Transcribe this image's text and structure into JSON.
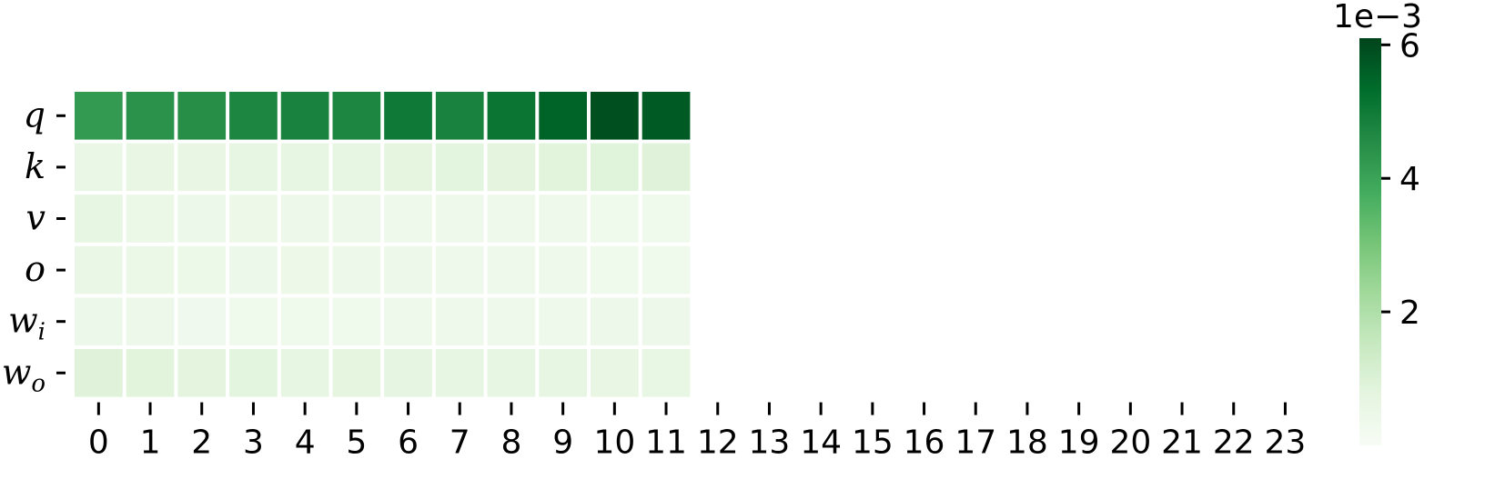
{
  "chart_data": {
    "type": "heatmap",
    "title": "",
    "xlabel": "",
    "ylabel": "",
    "x_ticks": [
      "0",
      "1",
      "2",
      "3",
      "4",
      "5",
      "6",
      "7",
      "8",
      "9",
      "10",
      "11",
      "12",
      "13",
      "14",
      "15",
      "16",
      "17",
      "18",
      "19",
      "20",
      "21",
      "22",
      "23"
    ],
    "rows": [
      {
        "base": "q",
        "sub": ""
      },
      {
        "base": "k",
        "sub": ""
      },
      {
        "base": "v",
        "sub": ""
      },
      {
        "base": "o",
        "sub": ""
      },
      {
        "base": "w",
        "sub": "i"
      },
      {
        "base": "w",
        "sub": "o"
      }
    ],
    "values": [
      [
        0.0042,
        0.0044,
        0.0045,
        0.0047,
        0.0048,
        0.0047,
        0.005,
        0.0048,
        0.0051,
        0.0055,
        0.0059,
        0.0057,
        null,
        null,
        null,
        null,
        null,
        null,
        null,
        null,
        null,
        null,
        null,
        null
      ],
      [
        0.00055,
        0.0006,
        0.00065,
        0.00068,
        0.0007,
        0.0007,
        0.00075,
        0.00078,
        0.0008,
        0.00085,
        0.00088,
        0.0009,
        null,
        null,
        null,
        null,
        null,
        null,
        null,
        null,
        null,
        null,
        null,
        null
      ],
      [
        0.0007,
        0.0005,
        0.00045,
        0.00042,
        0.0004,
        0.0004,
        0.00038,
        0.00036,
        0.00035,
        0.00035,
        0.00033,
        0.00032,
        null,
        null,
        null,
        null,
        null,
        null,
        null,
        null,
        null,
        null,
        null,
        null
      ],
      [
        0.00055,
        0.0005,
        0.00048,
        0.00045,
        0.00042,
        0.0004,
        0.0004,
        0.00038,
        0.00036,
        0.00035,
        0.00034,
        0.00033,
        null,
        null,
        null,
        null,
        null,
        null,
        null,
        null,
        null,
        null,
        null,
        null
      ],
      [
        0.00045,
        0.0004,
        0.0003,
        0.00032,
        0.00033,
        0.00034,
        0.00035,
        0.00036,
        0.00037,
        0.00038,
        0.00039,
        0.0004,
        null,
        null,
        null,
        null,
        null,
        null,
        null,
        null,
        null,
        null,
        null,
        null
      ],
      [
        0.0009,
        0.00085,
        0.0008,
        0.00078,
        0.0007,
        0.00075,
        0.00072,
        0.0007,
        0.00068,
        0.00066,
        0.00064,
        0.00062,
        null,
        null,
        null,
        null,
        null,
        null,
        null,
        null,
        null,
        null,
        null,
        null
      ]
    ],
    "colormap": "Greens",
    "colorbar": {
      "range": [
        0,
        0.0061
      ],
      "ticks": [
        2,
        4,
        6
      ],
      "tick_labels": [
        "2",
        "4",
        "6"
      ],
      "multiplier_label": "1e−3"
    },
    "grid": false,
    "legend": "colorbar-right"
  }
}
